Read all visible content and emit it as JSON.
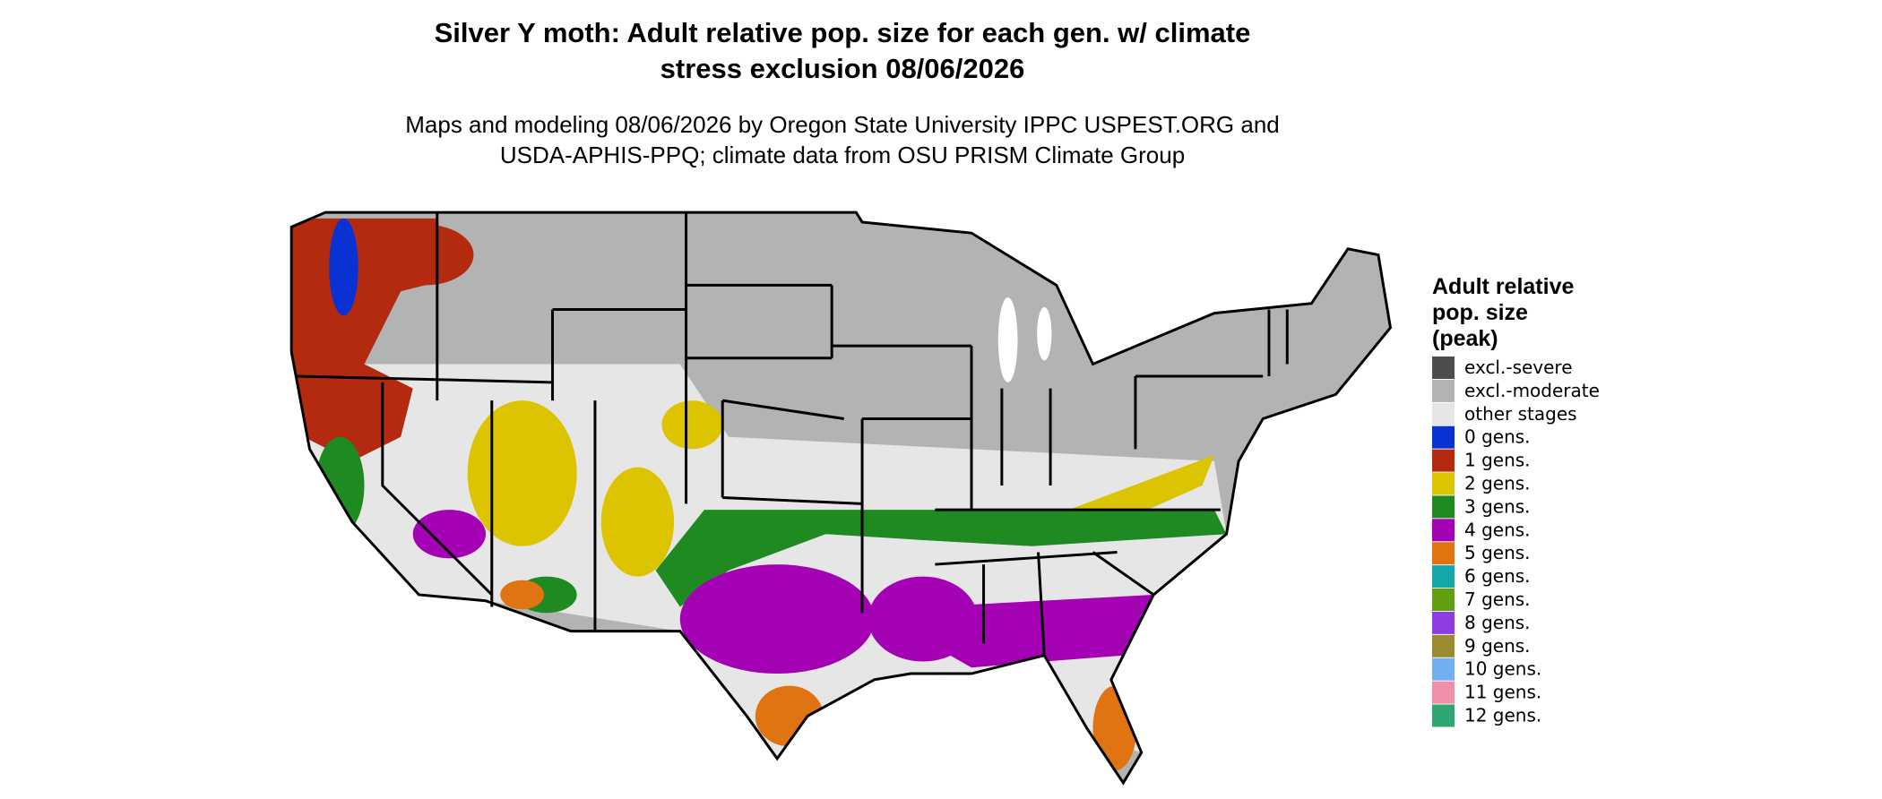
{
  "map": {
    "title_lines": [
      "Silver Y moth: Adult relative pop. size for each gen. w/ climate",
      "stress exclusion 08/06/2026"
    ],
    "subtitle_lines": [
      "Maps and modeling 08/06/2026 by Oregon State University IPPC USPEST.ORG and",
      "USDA-APHIS-PPQ; climate data from OSU PRISM Climate Group"
    ],
    "legend": {
      "title_lines": [
        "Adult relative",
        "pop. size",
        "(peak)"
      ],
      "items": [
        {
          "label": "excl.-severe",
          "color": "#4d4d4d"
        },
        {
          "label": "excl.-moderate",
          "color": "#b3b3b3"
        },
        {
          "label": "other stages",
          "color": "#e6e6e6"
        },
        {
          "label": "0 gens.",
          "color": "#0a32d2"
        },
        {
          "label": "1 gens.",
          "color": "#b42a0e"
        },
        {
          "label": "2 gens.",
          "color": "#dcc400"
        },
        {
          "label": "3 gens.",
          "color": "#1f8a22"
        },
        {
          "label": "4 gens.",
          "color": "#a400b4"
        },
        {
          "label": "5 gens.",
          "color": "#e07412"
        },
        {
          "label": "6 gens.",
          "color": "#14a8aa"
        },
        {
          "label": "7 gens.",
          "color": "#62a012"
        },
        {
          "label": "8 gens.",
          "color": "#8e3ee0"
        },
        {
          "label": "9 gens.",
          "color": "#9c8a30"
        },
        {
          "label": "10 gens.",
          "color": "#70b0f0"
        },
        {
          "label": "11 gens.",
          "color": "#f090a8"
        },
        {
          "label": "12 gens.",
          "color": "#2ea870"
        }
      ]
    }
  }
}
